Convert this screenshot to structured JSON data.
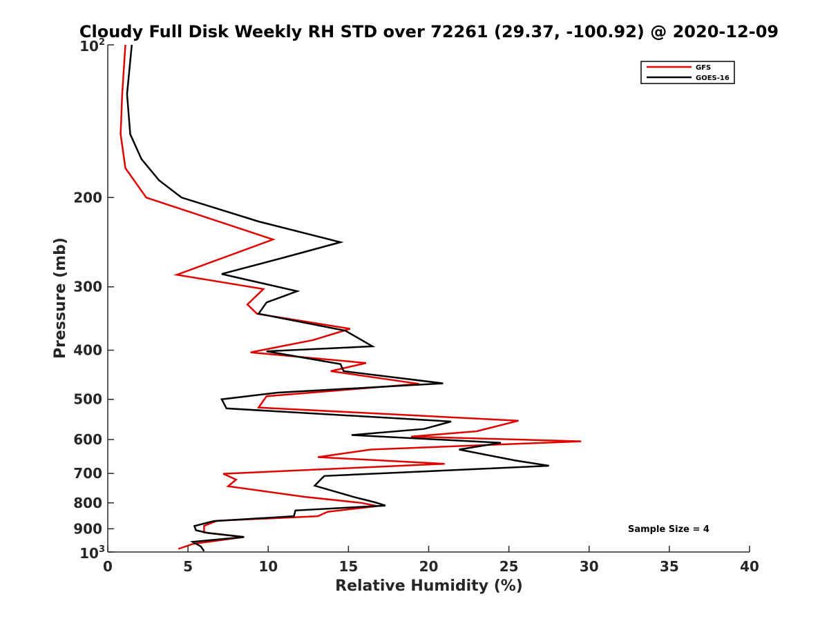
{
  "chart_data": {
    "type": "line",
    "title": "Cloudy Full Disk Weekly RH STD over 72261 (29.37, -100.92) @ 2020-12-09",
    "xlabel": "Relative Humidity (%)",
    "ylabel": "Pressure (mb)",
    "xlim": [
      0,
      40
    ],
    "ylim": [
      100,
      1000
    ],
    "y_scale": "log",
    "y_reversed": true,
    "x_ticks": [
      0,
      5,
      10,
      15,
      20,
      25,
      30,
      35,
      40
    ],
    "x_tick_labels": [
      "0",
      "5",
      "10",
      "15",
      "20",
      "25",
      "30",
      "35",
      "40"
    ],
    "y_ticks": [
      100,
      200,
      300,
      400,
      500,
      600,
      700,
      800,
      900,
      1000
    ],
    "y_tick_labels": [
      {
        "base": "10",
        "exp": "2"
      },
      {
        "text": "200"
      },
      {
        "text": "300"
      },
      {
        "text": "400"
      },
      {
        "text": "500"
      },
      {
        "text": "600"
      },
      {
        "text": "700"
      },
      {
        "text": "800"
      },
      {
        "text": "900"
      },
      {
        "base": "10",
        "exp": "3"
      }
    ],
    "grid": false,
    "legend_position": "top-right",
    "annotation": "Sample Size = 4",
    "series": [
      {
        "name": "GFS",
        "color": "#e00000",
        "points": [
          [
            1.1,
            100
          ],
          [
            0.9,
            125
          ],
          [
            0.8,
            150
          ],
          [
            1.1,
            175
          ],
          [
            2.4,
            200
          ],
          [
            10.3,
            242
          ],
          [
            4.3,
            284
          ],
          [
            9.7,
            303
          ],
          [
            8.7,
            325
          ],
          [
            9.3,
            339
          ],
          [
            15.1,
            363
          ],
          [
            12.8,
            382
          ],
          [
            8.9,
            404
          ],
          [
            16.1,
            424
          ],
          [
            13.9,
            440
          ],
          [
            19.4,
            466
          ],
          [
            9.9,
            493
          ],
          [
            9.4,
            519
          ],
          [
            25.6,
            551
          ],
          [
            23.0,
            578
          ],
          [
            18.9,
            592
          ],
          [
            29.5,
            605
          ],
          [
            16.4,
            628
          ],
          [
            13.1,
            650
          ],
          [
            21.0,
            670
          ],
          [
            7.2,
            701
          ],
          [
            8.0,
            720
          ],
          [
            7.5,
            742
          ],
          [
            12.2,
            778
          ],
          [
            15.8,
            800
          ],
          [
            16.8,
            812
          ],
          [
            13.7,
            833
          ],
          [
            13.1,
            850
          ],
          [
            6.8,
            868
          ],
          [
            6.0,
            888
          ],
          [
            6.0,
            915
          ],
          [
            8.5,
            934
          ],
          [
            5.3,
            964
          ],
          [
            4.4,
            986
          ]
        ]
      },
      {
        "name": "GOES-16",
        "color": "#000000",
        "points": [
          [
            1.5,
            100
          ],
          [
            1.2,
            125
          ],
          [
            1.4,
            150
          ],
          [
            2.1,
            168
          ],
          [
            3.2,
            185
          ],
          [
            4.6,
            200
          ],
          [
            9.4,
            223
          ],
          [
            14.5,
            245
          ],
          [
            11.1,
            262
          ],
          [
            7.1,
            283
          ],
          [
            11.8,
            306
          ],
          [
            9.9,
            322
          ],
          [
            9.4,
            339
          ],
          [
            14.8,
            366
          ],
          [
            16.5,
            393
          ],
          [
            9.9,
            402
          ],
          [
            14.5,
            426
          ],
          [
            14.7,
            440
          ],
          [
            20.9,
            465
          ],
          [
            10.6,
            485
          ],
          [
            7.1,
            500
          ],
          [
            7.4,
            521
          ],
          [
            21.4,
            553
          ],
          [
            19.7,
            572
          ],
          [
            15.2,
            588
          ],
          [
            24.5,
            609
          ],
          [
            21.9,
            628
          ],
          [
            25.4,
            660
          ],
          [
            27.5,
            676
          ],
          [
            13.5,
            708
          ],
          [
            13.3,
            718
          ],
          [
            12.9,
            740
          ],
          [
            15.4,
            780
          ],
          [
            16.6,
            797
          ],
          [
            17.3,
            810
          ],
          [
            11.7,
            828
          ],
          [
            11.6,
            850
          ],
          [
            6.6,
            869
          ],
          [
            5.4,
            889
          ],
          [
            5.5,
            906
          ],
          [
            6.3,
            918
          ],
          [
            8.5,
            934
          ],
          [
            5.3,
            955
          ],
          [
            5.8,
            975
          ],
          [
            6.0,
            996
          ]
        ]
      }
    ]
  }
}
